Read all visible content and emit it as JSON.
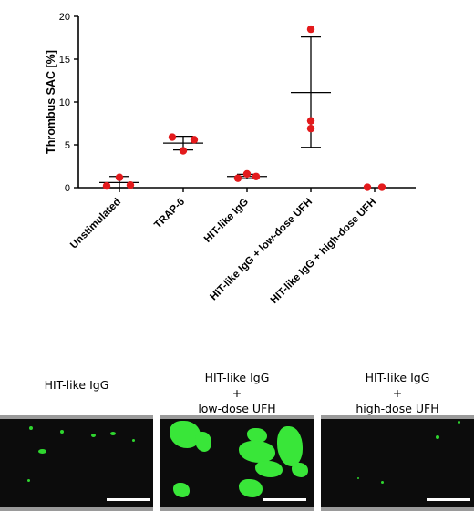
{
  "chart_data": {
    "type": "scatter",
    "ylabel": "Thrombus SAC [%]",
    "ylim": [
      0,
      20
    ],
    "yticks": [
      0,
      5,
      10,
      15,
      20
    ],
    "grid": false,
    "categories": [
      "Unstimulated",
      "TRAP-6",
      "HIT-like IgG",
      "HIT-like IgG + low-dose UFH",
      "HIT-like IgG + high-dose UFH"
    ],
    "groups": [
      {
        "points": [
          0.2,
          1.2,
          0.3
        ],
        "mean": 0.6,
        "sd_low": 0.0,
        "sd_high": 1.3
      },
      {
        "points": [
          5.9,
          5.6,
          4.3
        ],
        "mean": 5.2,
        "sd_low": 4.4,
        "sd_high": 6.0
      },
      {
        "points": [
          1.1,
          1.6,
          1.3
        ],
        "mean": 1.3,
        "sd_low": 1.05,
        "sd_high": 1.55
      },
      {
        "points": [
          18.5,
          7.8,
          6.9
        ],
        "mean": 11.1,
        "sd_low": 4.7,
        "sd_high": 17.6
      },
      {
        "points": [
          0.05,
          0.05
        ],
        "mean": null,
        "sd_low": null,
        "sd_high": null
      }
    ],
    "point_color": "#e31a1c"
  },
  "images": {
    "panels": [
      {
        "caption_lines": [
          "HIT-like IgG"
        ]
      },
      {
        "caption_lines": [
          "HIT-like IgG",
          "+",
          "low-dose UFH"
        ]
      },
      {
        "caption_lines": [
          "HIT-like IgG",
          "+",
          "high-dose UFH"
        ]
      }
    ],
    "signal_color": "#39e639"
  }
}
